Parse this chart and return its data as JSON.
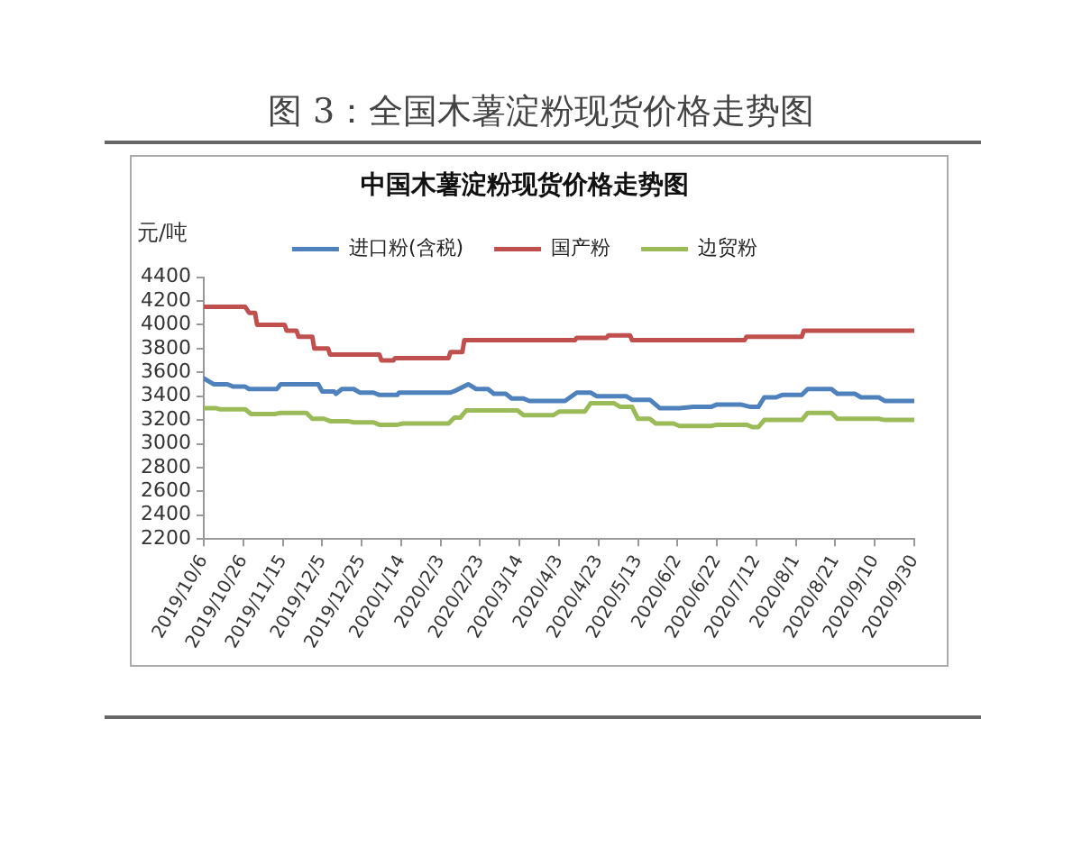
{
  "chart_data": {
    "type": "line",
    "title": "图 3：全国木薯淀粉现货价格走势图",
    "subtitle": "中国木薯淀粉现货价格走势图",
    "ylabel": "元/吨",
    "xlim": [
      "2019-10-06",
      "2020-09-30"
    ],
    "xticks": [
      {
        "value": "2019-10-06",
        "label": "2019/10/6"
      },
      {
        "value": "2019-10-26",
        "label": "2019/10/26"
      },
      {
        "value": "2019-11-15",
        "label": "2019/11/15"
      },
      {
        "value": "2019-12-05",
        "label": "2019/12/5"
      },
      {
        "value": "2019-12-25",
        "label": "2019/12/25"
      },
      {
        "value": "2020-01-14",
        "label": "2020/1/14"
      },
      {
        "value": "2020-02-03",
        "label": "2020/2/3"
      },
      {
        "value": "2020-02-23",
        "label": "2020/2/23"
      },
      {
        "value": "2020-03-14",
        "label": "2020/3/14"
      },
      {
        "value": "2020-04-03",
        "label": "2020/4/3"
      },
      {
        "value": "2020-04-23",
        "label": "2020/4/23"
      },
      {
        "value": "2020-05-13",
        "label": "2020/5/13"
      },
      {
        "value": "2020-06-02",
        "label": "2020/6/2"
      },
      {
        "value": "2020-06-22",
        "label": "2020/6/22"
      },
      {
        "value": "2020-07-12",
        "label": "2020/7/12"
      },
      {
        "value": "2020-08-01",
        "label": "2020/8/1"
      },
      {
        "value": "2020-08-21",
        "label": "2020/8/21"
      },
      {
        "value": "2020-09-10",
        "label": "2020/9/10"
      },
      {
        "value": "2020-09-30",
        "label": "2020/9/30"
      }
    ],
    "ylim": [
      2200,
      4400
    ],
    "yticks": [
      2200,
      2400,
      2600,
      2800,
      3000,
      3200,
      3400,
      3600,
      3800,
      4000,
      4200,
      4400
    ],
    "series": [
      {
        "name": "进口粉(含税)",
        "color": "#4f81bd",
        "x": [
          "2019-10-06",
          "2019-10-11",
          "2019-10-18",
          "2019-10-21",
          "2019-10-27",
          "2019-10-29",
          "2019-11-12",
          "2019-11-14",
          "2019-12-03",
          "2019-12-05",
          "2019-12-11",
          "2019-12-12",
          "2019-12-15",
          "2019-12-21",
          "2019-12-24",
          "2019-12-31",
          "2020-01-03",
          "2020-01-12",
          "2020-01-13",
          "2020-02-08",
          "2020-02-11",
          "2020-02-17",
          "2020-02-21",
          "2020-02-27",
          "2020-03-01",
          "2020-03-07",
          "2020-03-10",
          "2020-03-16",
          "2020-03-19",
          "2020-04-06",
          "2020-04-12",
          "2020-04-19",
          "2020-04-22",
          "2020-05-07",
          "2020-05-10",
          "2020-05-19",
          "2020-05-24",
          "2020-06-03",
          "2020-06-10",
          "2020-06-19",
          "2020-06-22",
          "2020-07-04",
          "2020-07-09",
          "2020-07-13",
          "2020-07-16",
          "2020-07-22",
          "2020-07-25",
          "2020-08-04",
          "2020-08-07",
          "2020-08-19",
          "2020-08-22",
          "2020-08-31",
          "2020-09-03",
          "2020-09-12",
          "2020-09-15",
          "2020-09-30"
        ],
        "values": [
          3550,
          3500,
          3500,
          3480,
          3480,
          3460,
          3460,
          3500,
          3500,
          3440,
          3440,
          3420,
          3460,
          3460,
          3430,
          3430,
          3410,
          3410,
          3430,
          3430,
          3450,
          3500,
          3460,
          3460,
          3420,
          3420,
          3380,
          3380,
          3360,
          3360,
          3430,
          3430,
          3400,
          3400,
          3370,
          3370,
          3300,
          3300,
          3310,
          3310,
          3330,
          3330,
          3310,
          3310,
          3390,
          3390,
          3410,
          3410,
          3460,
          3460,
          3420,
          3420,
          3390,
          3390,
          3360,
          3360
        ]
      },
      {
        "name": "国产粉",
        "color": "#c0504d",
        "x": [
          "2019-10-06",
          "2019-10-27",
          "2019-10-29",
          "2019-11-01",
          "2019-11-02",
          "2019-11-16",
          "2019-11-17",
          "2019-11-22",
          "2019-11-23",
          "2019-11-30",
          "2019-12-01",
          "2019-12-08",
          "2019-12-09",
          "2020-01-03",
          "2020-01-04",
          "2020-01-10",
          "2020-01-11",
          "2020-02-07",
          "2020-02-08",
          "2020-02-14",
          "2020-02-15",
          "2020-04-11",
          "2020-04-12",
          "2020-04-27",
          "2020-04-28",
          "2020-05-09",
          "2020-05-10",
          "2020-07-06",
          "2020-07-07",
          "2020-08-04",
          "2020-08-05",
          "2020-09-30"
        ],
        "values": [
          4150,
          4150,
          4100,
          4100,
          4000,
          4000,
          3950,
          3950,
          3900,
          3900,
          3800,
          3800,
          3750,
          3750,
          3700,
          3700,
          3720,
          3720,
          3770,
          3770,
          3870,
          3870,
          3890,
          3890,
          3910,
          3910,
          3870,
          3870,
          3900,
          3900,
          3950,
          3950
        ]
      },
      {
        "name": "边贸粉",
        "color": "#9bbb59",
        "x": [
          "2019-10-06",
          "2019-10-12",
          "2019-10-14",
          "2019-10-27",
          "2019-10-30",
          "2019-11-11",
          "2019-11-14",
          "2019-11-27",
          "2019-11-30",
          "2019-12-06",
          "2019-12-09",
          "2019-12-18",
          "2019-12-21",
          "2019-12-31",
          "2020-01-03",
          "2020-01-12",
          "2020-01-15",
          "2020-02-07",
          "2020-02-10",
          "2020-02-13",
          "2020-02-16",
          "2020-03-13",
          "2020-03-16",
          "2020-03-31",
          "2020-04-03",
          "2020-04-16",
          "2020-04-19",
          "2020-05-01",
          "2020-05-04",
          "2020-05-10",
          "2020-05-13",
          "2020-05-19",
          "2020-05-22",
          "2020-05-31",
          "2020-06-03",
          "2020-06-19",
          "2020-06-22",
          "2020-07-07",
          "2020-07-10",
          "2020-07-13",
          "2020-07-16",
          "2020-08-04",
          "2020-08-07",
          "2020-08-19",
          "2020-08-22",
          "2020-09-12",
          "2020-09-15",
          "2020-09-30"
        ],
        "values": [
          3300,
          3300,
          3290,
          3290,
          3250,
          3250,
          3260,
          3260,
          3210,
          3210,
          3190,
          3190,
          3180,
          3180,
          3160,
          3160,
          3170,
          3170,
          3220,
          3220,
          3280,
          3280,
          3240,
          3240,
          3270,
          3270,
          3340,
          3340,
          3310,
          3310,
          3210,
          3210,
          3170,
          3170,
          3150,
          3150,
          3160,
          3160,
          3140,
          3140,
          3200,
          3200,
          3260,
          3260,
          3210,
          3210,
          3200,
          3200
        ]
      }
    ],
    "legend": "top",
    "grid": false,
    "marker": "none"
  }
}
